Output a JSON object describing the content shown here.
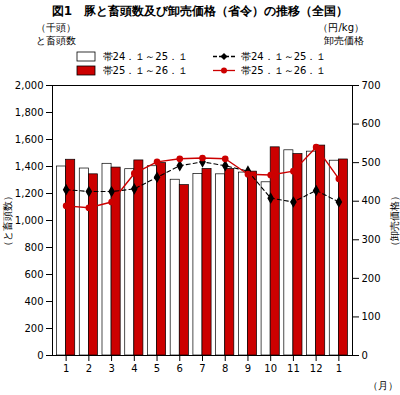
{
  "chart_data": {
    "type": "bar",
    "title": "図1　豚と畜頭数及び卸売価格（省令）の推移（全国）",
    "annotations": [
      "（千頭）",
      "（円/kg）",
      "と畜頭数",
      "卸売価格"
    ],
    "xlabel": "（月）",
    "ylabel": "（と畜頭数）",
    "y2label": "（卸売価格）",
    "categories": [
      "1",
      "2",
      "3",
      "4",
      "5",
      "6",
      "7",
      "8",
      "9",
      "10",
      "11",
      "12",
      "1"
    ],
    "series": [
      {
        "name": "帯24．１～25．１",
        "type": "bar",
        "color": "#ffffff",
        "values": [
          1400,
          1385,
          1420,
          1380,
          1402,
          1302,
          1345,
          1342,
          1355,
          1283,
          1520,
          1510,
          1443
        ]
      },
      {
        "name": "帯25．１～26．１",
        "type": "bar",
        "color": "#cc0000",
        "values": [
          1450,
          1342,
          1392,
          1445,
          1425,
          1262,
          1382,
          1382,
          1362,
          1542,
          1492,
          1555,
          1452
        ]
      },
      {
        "name": "帯24．１～25．１",
        "type": "line",
        "axis": "y2",
        "color": "#000000",
        "marker": "diamond",
        "line_style": "dashed",
        "values": [
          430,
          425,
          425,
          432,
          462,
          492,
          502,
          492,
          478,
          408,
          398,
          428,
          398
        ]
      },
      {
        "name": "帯25．１～26．１",
        "type": "line",
        "axis": "y2",
        "color": "#cc0000",
        "marker": "circle",
        "line_style": "solid",
        "values": [
          388,
          383,
          398,
          472,
          502,
          510,
          512,
          510,
          470,
          468,
          478,
          540,
          458
        ]
      }
    ],
    "ylim": [
      0,
      2000
    ],
    "yticks": [
      0,
      200,
      400,
      600,
      800,
      {
        "value": 1000,
        "label": "1,000"
      },
      {
        "value": 1200,
        "label": "1,200"
      },
      {
        "value": 1400,
        "label": "1,400"
      },
      {
        "value": 1600,
        "label": "1,600"
      },
      {
        "value": 1800,
        "label": "1,800"
      },
      {
        "value": 2000,
        "label": "2,000"
      }
    ],
    "y2lim": [
      0,
      700
    ],
    "y2ticks": [
      0,
      100,
      200,
      300,
      400,
      500,
      600,
      700
    ],
    "grid": false,
    "legend": "top"
  }
}
